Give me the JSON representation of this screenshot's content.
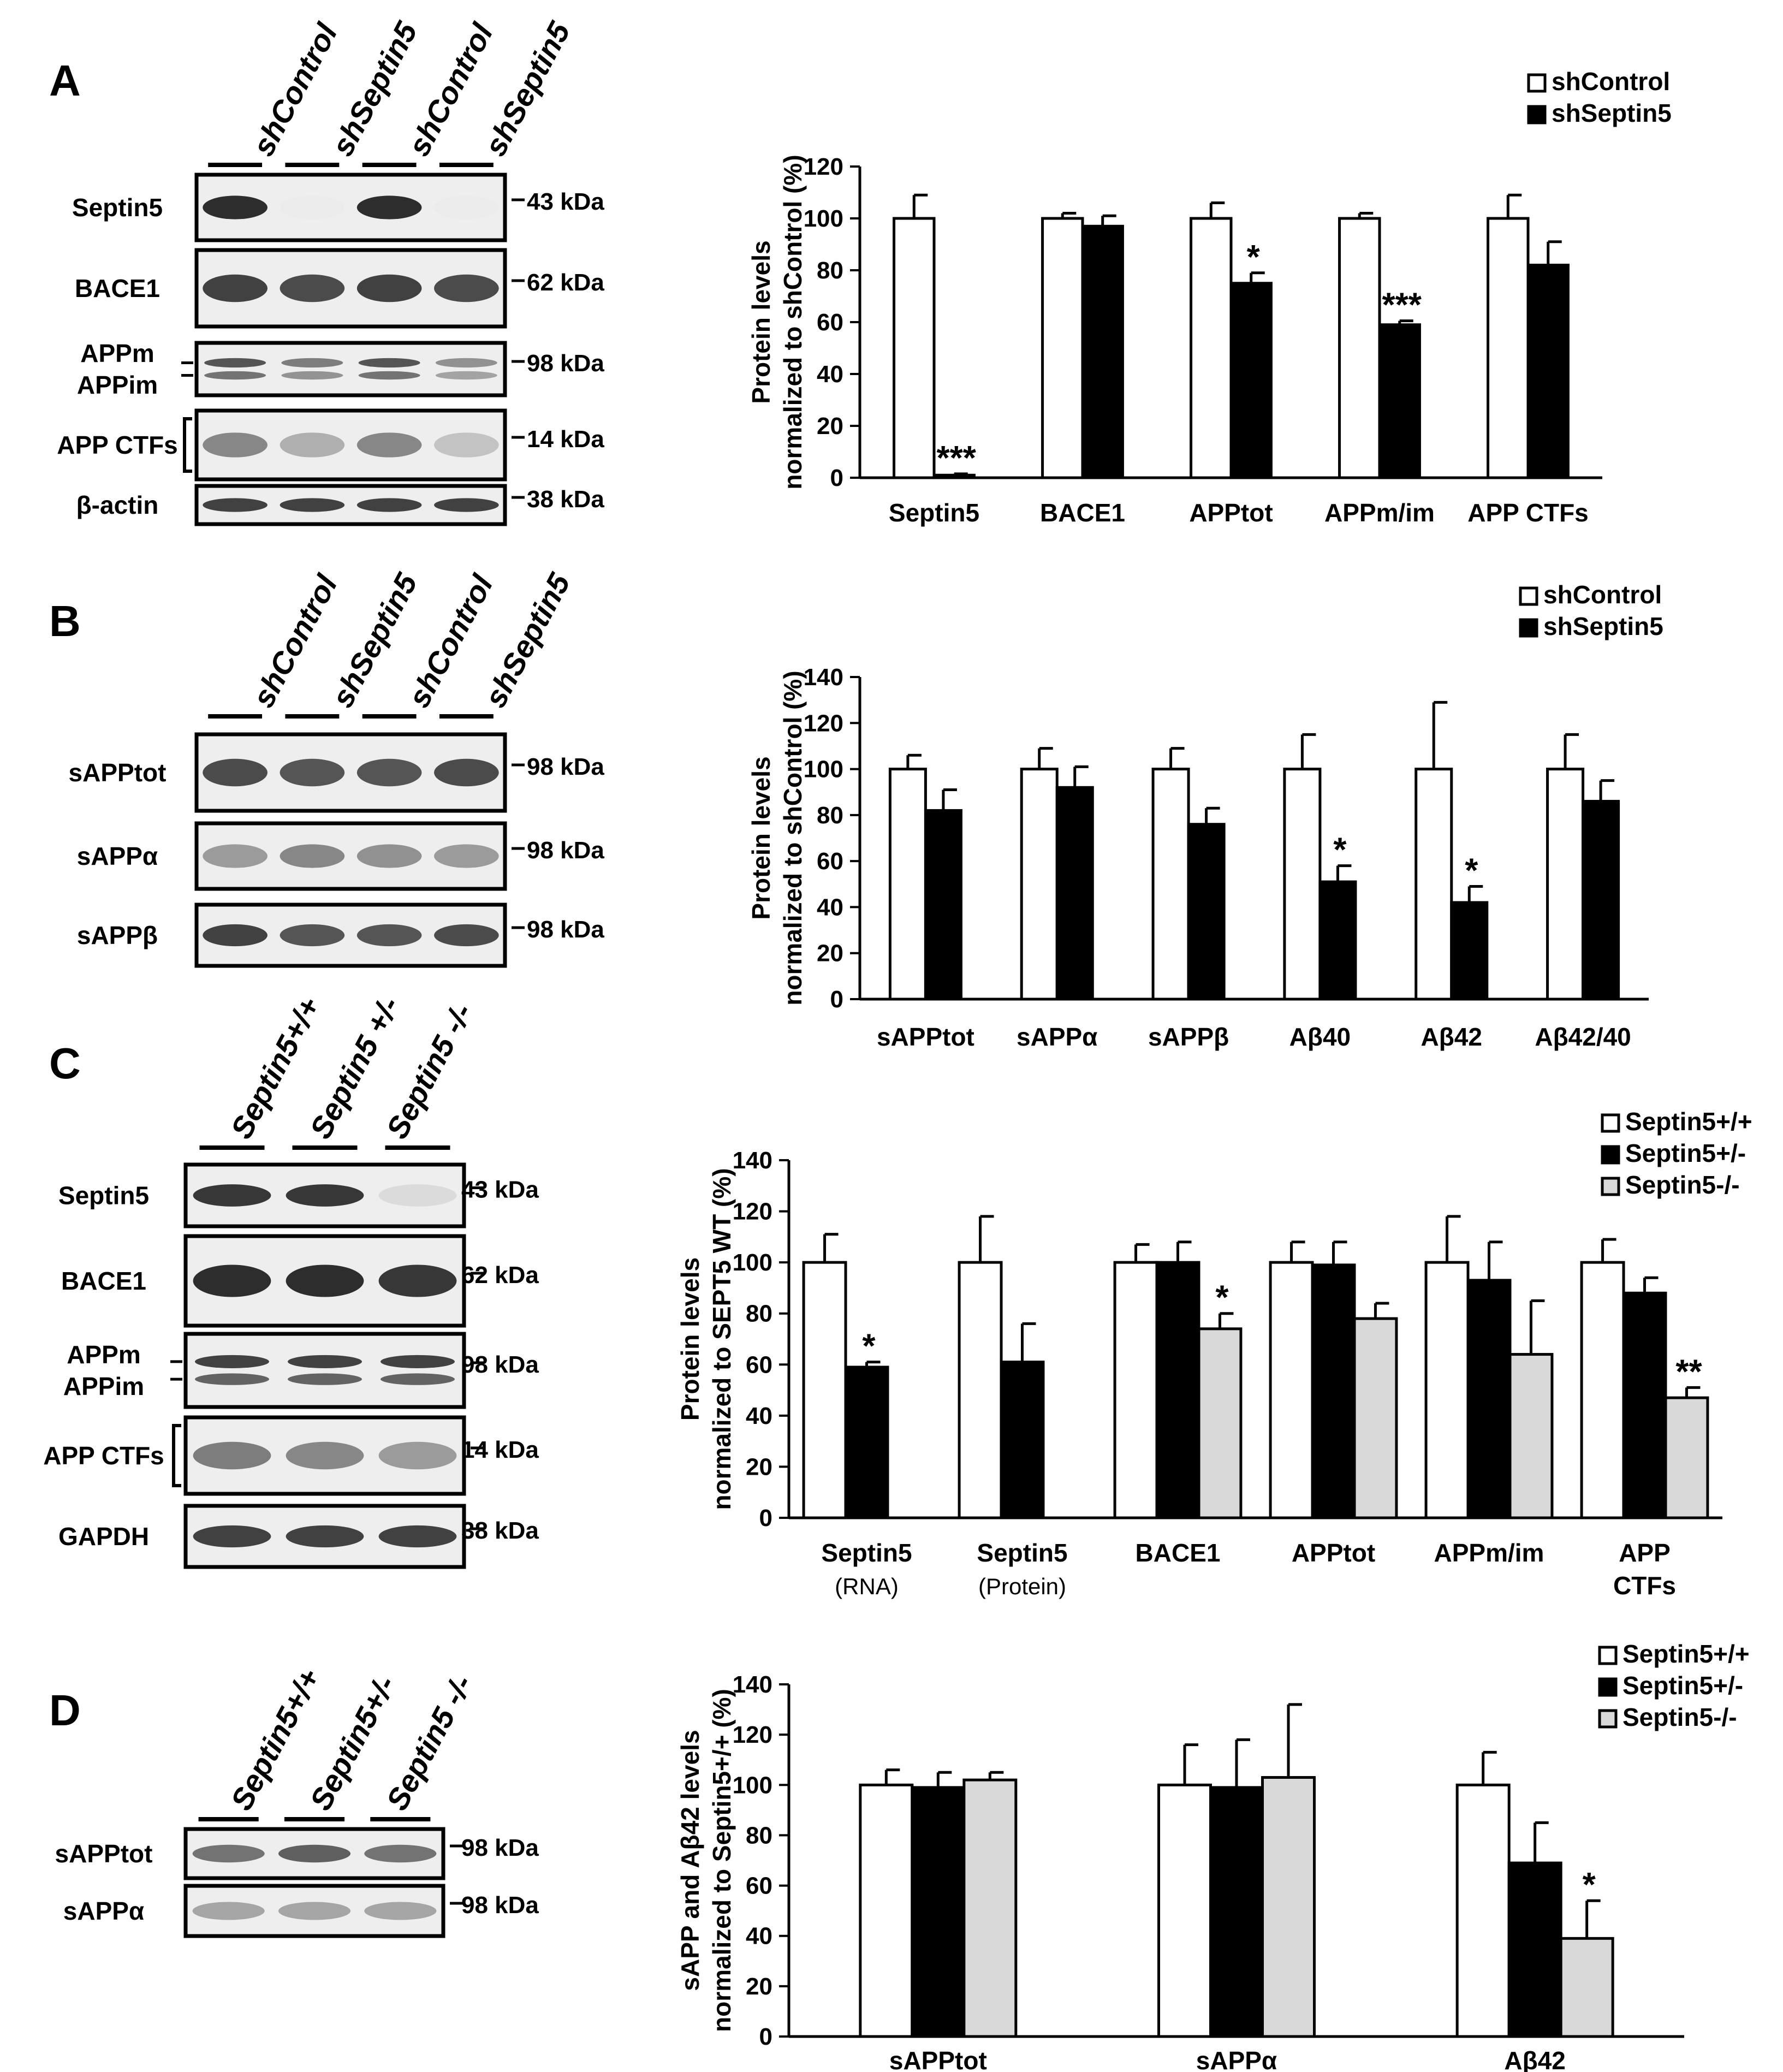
{
  "panels": [
    {
      "label": "A",
      "blot": {
        "lanes": [
          "shControl",
          "shSeptin5",
          "shControl",
          "shSeptin5"
        ],
        "strips": [
          {
            "label": "Septin5",
            "bands": [
              0.95,
              0.0,
              0.95,
              0.0
            ],
            "double": false
          },
          {
            "label": "BACE1",
            "bands": [
              0.85,
              0.8,
              0.85,
              0.8
            ],
            "double": false
          },
          {
            "label": "APPm\nAPPim",
            "bands": [
              0.75,
              0.55,
              0.75,
              0.45
            ],
            "double": true
          },
          {
            "label": "APP CTFs",
            "bands": [
              0.5,
              0.3,
              0.5,
              0.2
            ],
            "double": false,
            "bracket": true
          },
          {
            "label": "β-actin",
            "bands": [
              0.85,
              0.85,
              0.85,
              0.85
            ],
            "double": false
          }
        ],
        "markers": [
          "43 kDa",
          "62 kDa",
          "98 kDa",
          "14 kDa",
          "38 kDa"
        ]
      },
      "chart": {
        "type": "bar",
        "ylabel": [
          "Protein levels",
          "normalized to shControl (%)"
        ],
        "ylim": [
          0,
          120
        ],
        "yticks": [
          0,
          20,
          40,
          60,
          80,
          100,
          120
        ],
        "categories": [
          "Septin5",
          "BACE1",
          "APPtot",
          "APPm/im",
          "APP CTFs"
        ],
        "series": [
          {
            "name": "shControl",
            "color": "#ffffff",
            "values": [
              100,
              100,
              100,
              100,
              100
            ],
            "errors": [
              9,
              2,
              6,
              2,
              9
            ]
          },
          {
            "name": "shSeptin5",
            "color": "#000000",
            "values": [
              1,
              97,
              75,
              59,
              82
            ],
            "errors": [
              0.5,
              4,
              4,
              1.5,
              9
            ]
          }
        ],
        "significance": [
          {
            "category": 0,
            "series": 1,
            "text": "***"
          },
          {
            "category": 2,
            "series": 1,
            "text": "*"
          },
          {
            "category": 3,
            "series": 1,
            "text": "***"
          }
        ]
      }
    },
    {
      "label": "B",
      "blot": {
        "lanes": [
          "shControl",
          "shSeptin5",
          "shControl",
          "shSeptin5"
        ],
        "strips": [
          {
            "label": "sAPPtot",
            "bands": [
              0.8,
              0.75,
              0.75,
              0.8
            ],
            "double": false
          },
          {
            "label": "sAPPα",
            "bands": [
              0.4,
              0.5,
              0.45,
              0.4
            ],
            "double": false
          },
          {
            "label": "sAPPβ",
            "bands": [
              0.85,
              0.75,
              0.75,
              0.8
            ],
            "double": false
          }
        ],
        "markers": [
          "98 kDa",
          "98 kDa",
          "98 kDa"
        ]
      },
      "chart": {
        "type": "bar",
        "ylabel": [
          "Protein levels",
          "normalized to shControl (%)"
        ],
        "ylim": [
          0,
          140
        ],
        "yticks": [
          0,
          20,
          40,
          60,
          80,
          100,
          120,
          140
        ],
        "categories": [
          "sAPPtot",
          "sAPPα",
          "sAPPβ",
          "Aβ40",
          "Aβ42",
          "Aβ42/40"
        ],
        "series": [
          {
            "name": "shControl",
            "color": "#ffffff",
            "values": [
              100,
              100,
              100,
              100,
              100,
              100
            ],
            "errors": [
              6,
              9,
              9,
              15,
              29,
              15
            ]
          },
          {
            "name": "shSeptin5",
            "color": "#000000",
            "values": [
              82,
              92,
              76,
              51,
              42,
              86
            ],
            "errors": [
              9,
              9,
              7,
              7,
              7,
              9
            ]
          }
        ],
        "significance": [
          {
            "category": 3,
            "series": 1,
            "text": "*"
          },
          {
            "category": 4,
            "series": 1,
            "text": "*"
          }
        ]
      }
    },
    {
      "label": "C",
      "blot": {
        "lanes": [
          "Septin5+/+",
          "Septin5 +/-",
          "Septin5 -/-"
        ],
        "strips": [
          {
            "label": "Septin5",
            "bands": [
              0.9,
              0.9,
              0.08
            ],
            "double": false
          },
          {
            "label": "BACE1",
            "bands": [
              0.95,
              0.95,
              0.9
            ],
            "double": false
          },
          {
            "label": "APPm\nAPPim",
            "bands": [
              0.85,
              0.85,
              0.85
            ],
            "double": true
          },
          {
            "label": "APP CTFs",
            "bands": [
              0.55,
              0.5,
              0.4
            ],
            "double": false,
            "bracket": true
          },
          {
            "label": "GAPDH",
            "bands": [
              0.85,
              0.85,
              0.85
            ],
            "double": false
          }
        ],
        "markers": [
          "43 kDa",
          "62 kDa",
          "98 kDa",
          "14 kDa",
          "38 kDa"
        ]
      },
      "chart": {
        "type": "bar",
        "ylabel": [
          "Protein levels",
          "normalized to SEPT5 WT (%)"
        ],
        "ylim": [
          0,
          140
        ],
        "yticks": [
          0,
          20,
          40,
          60,
          80,
          100,
          120,
          140
        ],
        "categories": [
          "Septin5",
          "Septin5",
          "BACE1",
          "APPtot",
          "APPm/im",
          "APP"
        ],
        "category_sublabels": [
          "(RNA)",
          "(Protein)",
          "",
          "",
          "",
          "CTFs"
        ],
        "series": [
          {
            "name": "Septin5+/+",
            "color": "#ffffff",
            "values": [
              100,
              100,
              100,
              100,
              100,
              100
            ],
            "errors": [
              11,
              18,
              7,
              8,
              18,
              9
            ]
          },
          {
            "name": "Septin5+/-",
            "color": "#000000",
            "values": [
              59,
              61,
              null,
              99,
              93,
              88
            ],
            "errors": [
              2,
              15,
              null,
              9,
              15,
              6
            ]
          },
          {
            "name": "Septin5-/-",
            "color": "#d9d9d9",
            "values": [
              null,
              null,
              74,
              78,
              64,
              47
            ],
            "errors": [
              null,
              null,
              6,
              6,
              21,
              4
            ]
          }
        ],
        "extra_series_values": [
          [
            2,
            1,
            100,
            8
          ]
        ],
        "significance": [
          {
            "category": 0,
            "series": 1,
            "text": "*"
          },
          {
            "category": 2,
            "series": 2,
            "text": "*"
          },
          {
            "category": 5,
            "series": 2,
            "text": "**"
          }
        ]
      }
    },
    {
      "label": "D",
      "blot": {
        "lanes": [
          "Septin5+/+",
          "Septin5+/-",
          "Septin5 -/-"
        ],
        "strips": [
          {
            "label": "sAPPtot",
            "bands": [
              0.6,
              0.7,
              0.6
            ],
            "double": false
          },
          {
            "label": "sAPPα",
            "bands": [
              0.35,
              0.35,
              0.35
            ],
            "double": false
          }
        ],
        "markers": [
          "98 kDa",
          "98 kDa"
        ]
      },
      "chart": {
        "type": "bar",
        "ylabel": [
          "sAPP and Aβ42 levels",
          "normalized to Septin5+/+ (%)"
        ],
        "ylim": [
          0,
          140
        ],
        "yticks": [
          0,
          20,
          40,
          60,
          80,
          100,
          120,
          140
        ],
        "categories": [
          "sAPPtot",
          "sAPPα",
          "Aβ42"
        ],
        "series": [
          {
            "name": "Septin5+/+",
            "color": "#ffffff",
            "values": [
              100,
              100,
              100
            ],
            "errors": [
              6,
              16,
              13
            ]
          },
          {
            "name": "Septin5+/-",
            "color": "#000000",
            "values": [
              99,
              99,
              69
            ],
            "errors": [
              6,
              19,
              16
            ]
          },
          {
            "name": "Septin5-/-",
            "color": "#d9d9d9",
            "values": [
              102,
              103,
              39
            ],
            "errors": [
              3,
              29,
              15
            ]
          }
        ],
        "significance": [
          {
            "category": 2,
            "series": 2,
            "text": "*"
          }
        ]
      }
    }
  ]
}
